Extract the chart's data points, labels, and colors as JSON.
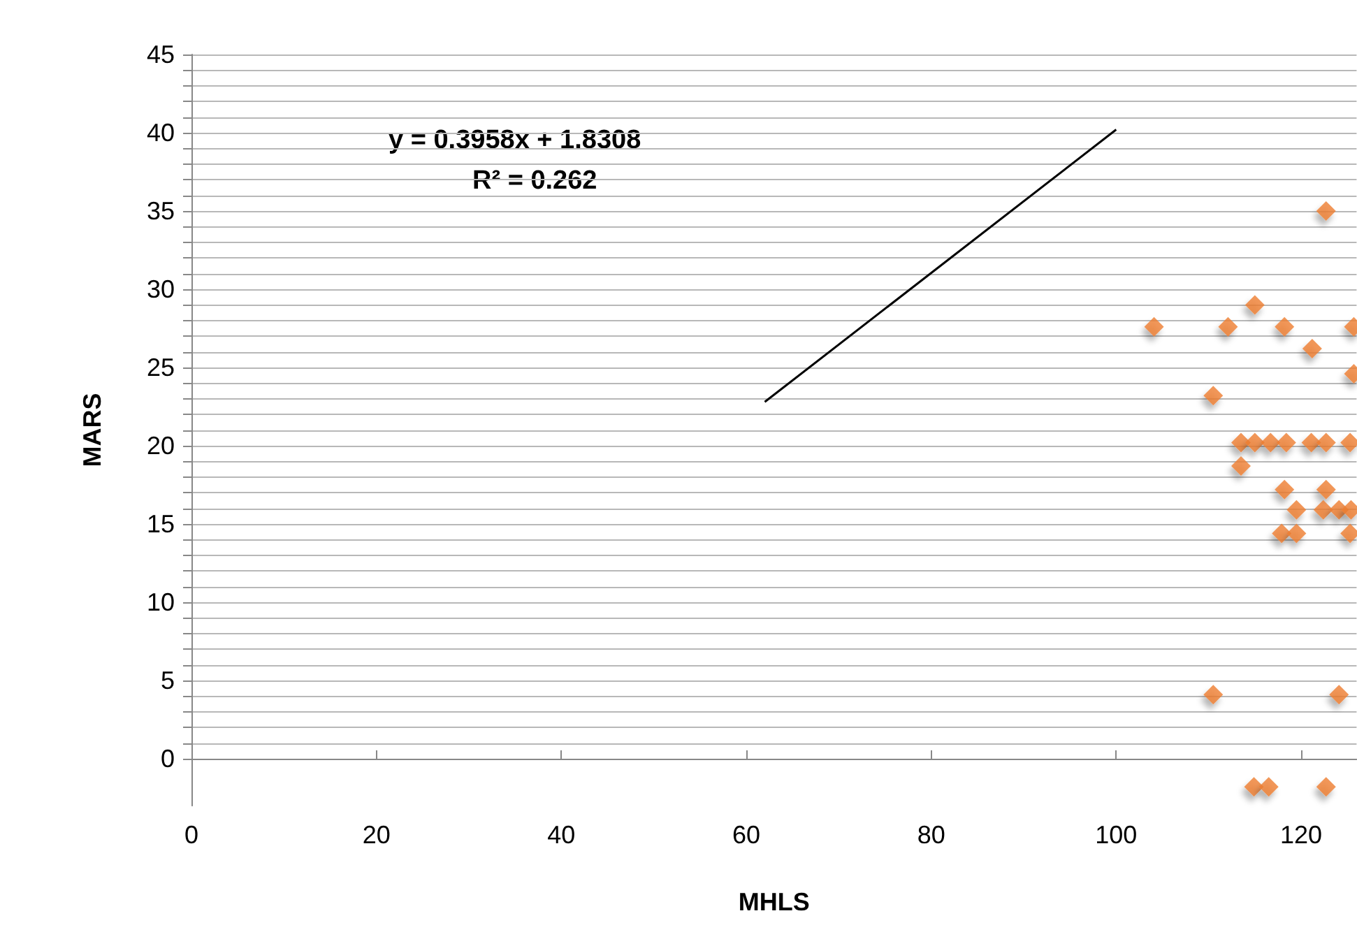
{
  "chart_data": {
    "type": "scatter",
    "xlabel": "MHLS",
    "ylabel": "MARS",
    "annotations": [
      "y = 0.3958x + 1.8308",
      "R² = 0.262"
    ],
    "xlim": [
      0,
      126
    ],
    "ylim": [
      -3,
      45
    ],
    "xticks": [
      0,
      20,
      40,
      60,
      80,
      100,
      120
    ],
    "yticks": [
      0,
      {
        "value": 1,
        "label": null
      },
      {
        "value": 2,
        "label": null
      },
      {
        "value": 3,
        "label": null
      },
      {
        "value": 4,
        "label": null
      },
      5,
      {
        "value": 6,
        "label": null
      },
      {
        "value": 7,
        "label": null
      },
      {
        "value": 8,
        "label": null
      },
      {
        "value": 9,
        "label": null
      },
      10,
      {
        "value": 11,
        "label": null
      },
      {
        "value": 12,
        "label": null
      },
      {
        "value": 13,
        "label": null
      },
      {
        "value": 14,
        "label": null
      },
      15,
      {
        "value": 16,
        "label": null
      },
      {
        "value": 17,
        "label": null
      },
      {
        "value": 18,
        "label": null
      },
      {
        "value": 19,
        "label": null
      },
      20,
      {
        "value": 21,
        "label": null
      },
      {
        "value": 22,
        "label": null
      },
      {
        "value": 23,
        "label": null
      },
      {
        "value": 24,
        "label": null
      },
      25,
      {
        "value": 26,
        "label": null
      },
      {
        "value": 27,
        "label": null
      },
      {
        "value": 28,
        "label": null
      },
      {
        "value": 29,
        "label": null
      },
      30,
      {
        "value": 31,
        "label": null
      },
      {
        "value": 32,
        "label": null
      },
      {
        "value": 33,
        "label": null
      },
      {
        "value": 34,
        "label": null
      },
      35,
      {
        "value": 36,
        "label": null
      },
      {
        "value": 37,
        "label": null
      },
      {
        "value": 38,
        "label": null
      },
      {
        "value": 39,
        "label": null
      },
      40,
      {
        "value": 41,
        "label": null
      },
      {
        "value": 42,
        "label": null
      },
      {
        "value": 43,
        "label": null
      },
      {
        "value": 44,
        "label": null
      },
      45
    ],
    "grid": "y",
    "marker": "diamond",
    "series": [
      {
        "color": "#ed7d31",
        "x": [
          104.1,
          112.1,
          118.2,
          115.0,
          121.2,
          110.5,
          122.7,
          125.7,
          125.7,
          113.5,
          115.0,
          116.7,
          118.4,
          121.1,
          122.7,
          125.3,
          113.5,
          118.2,
          122.7,
          119.5,
          122.4,
          124.1,
          125.4,
          117.9,
          119.5,
          125.3,
          110.5,
          124.1,
          114.9,
          116.5,
          122.7
        ],
        "values": [
          27.6,
          27.6,
          27.6,
          29.0,
          26.2,
          23.2,
          35.0,
          27.6,
          24.6,
          20.2,
          20.2,
          20.2,
          20.2,
          20.2,
          20.2,
          20.2,
          18.7,
          17.2,
          17.2,
          15.9,
          15.9,
          15.9,
          15.9,
          14.4,
          14.4,
          14.4,
          4.1,
          4.1,
          -1.8,
          -1.8,
          -1.8
        ]
      },
      {
        "type": "line",
        "color": "#000000",
        "marker": "none",
        "x": [
          62,
          100
        ],
        "values": [
          22.8,
          40.2
        ]
      }
    ]
  }
}
